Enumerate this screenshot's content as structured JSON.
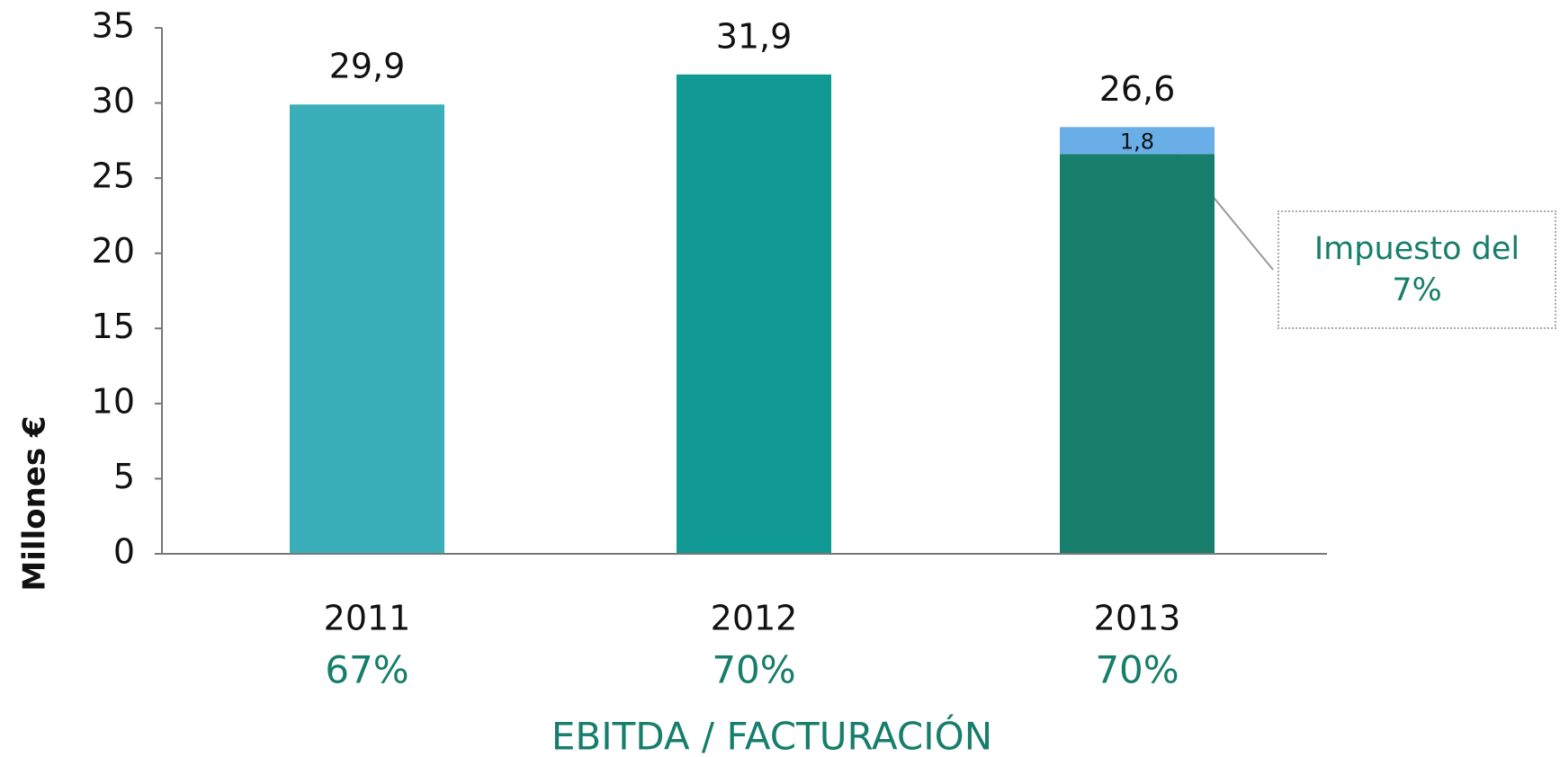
{
  "chart_data": {
    "type": "bar",
    "stacked": true,
    "categories": [
      "2011",
      "2012",
      "2013"
    ],
    "category_sublabels": [
      "67%",
      "70%",
      "70%"
    ],
    "series": [
      {
        "colors": [
          "#3aafb9",
          "#119a94",
          "#167e6a"
        ],
        "values": [
          29.9,
          31.9,
          26.6
        ],
        "value_labels": [
          "29,9",
          "31,9",
          "26,6"
        ]
      },
      {
        "color": "#6aaee8",
        "values": [
          null,
          null,
          1.8
        ],
        "value_labels": [
          null,
          null,
          "1,8"
        ]
      }
    ],
    "xlabel": "EBITDA / FACTURACIÓN",
    "ylabel": "Millones €",
    "annotation": "Impuesto del 7%",
    "ylim": [
      0,
      35
    ],
    "yticks": [
      0,
      5,
      10,
      15,
      20,
      25,
      30,
      35
    ],
    "grid": false
  }
}
